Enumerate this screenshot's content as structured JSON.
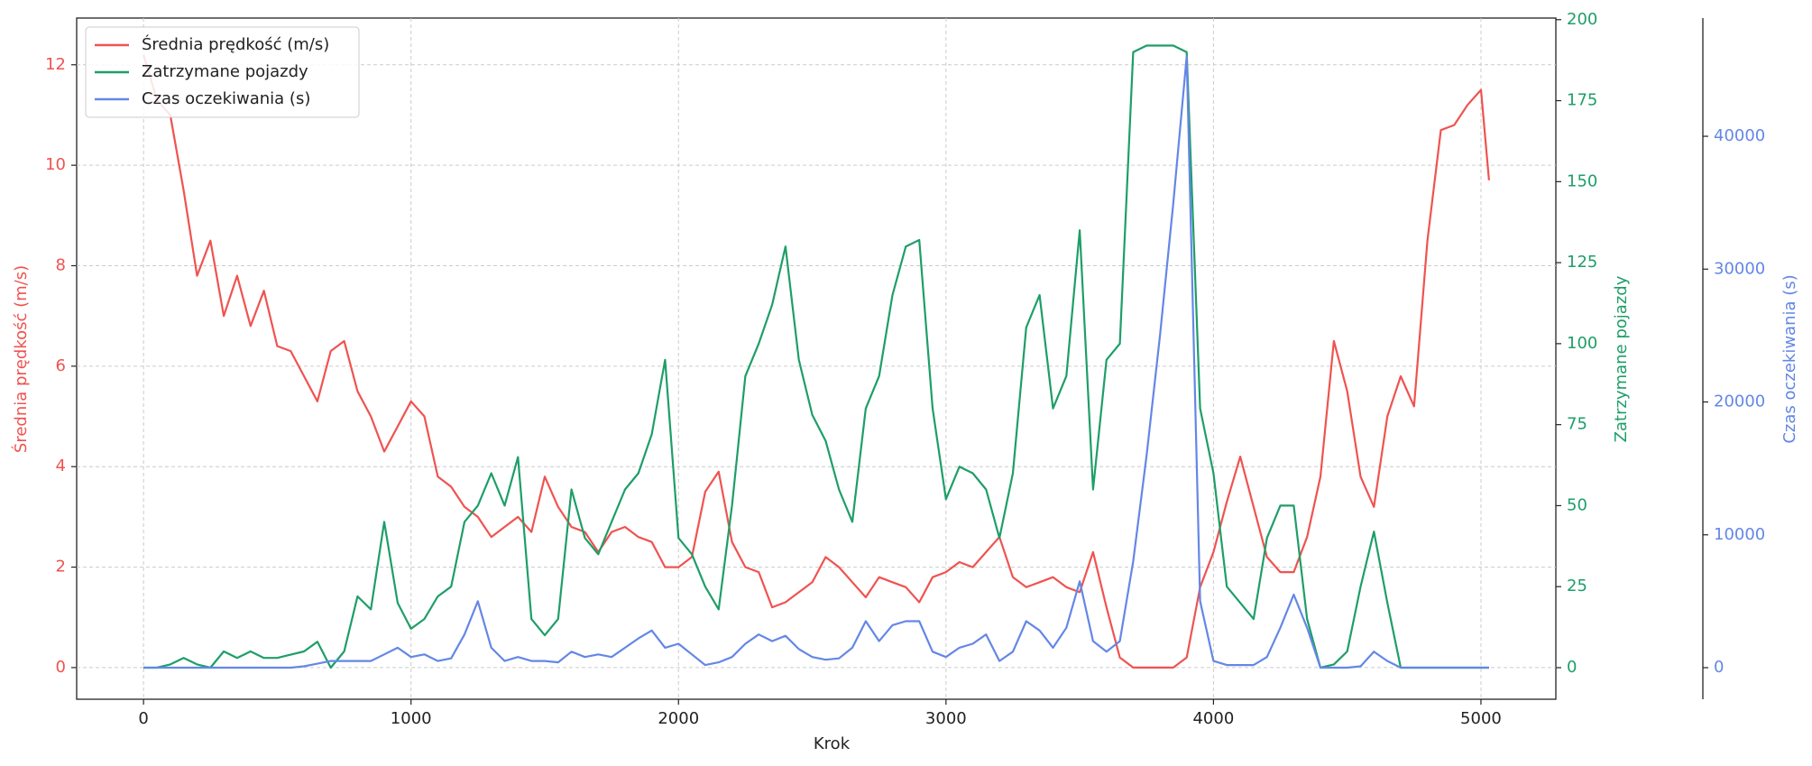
{
  "chart_data": {
    "type": "line",
    "xlabel": "Krok",
    "ylabel": "Średnia prędkość (m/s)",
    "y2label": "Zatrzymane pojazdy",
    "y3label": "Czas oczekiwania (s)",
    "grid": true,
    "legend": "upper left",
    "xlim": [
      -250,
      5280
    ],
    "xticks": [
      0,
      1000,
      2000,
      3000,
      4000,
      5000
    ],
    "ylim": [
      -0.63,
      12.93
    ],
    "yticks": [
      0,
      2,
      4,
      6,
      8,
      10,
      12
    ],
    "y2lim": [
      -9.75,
      200.5
    ],
    "y2ticks": [
      0,
      25,
      50,
      75,
      100,
      125,
      150,
      175,
      200
    ],
    "y3lim": [
      -2377,
      48900
    ],
    "y3ticks": [
      0,
      10000,
      20000,
      30000,
      40000
    ],
    "x": [
      0,
      50,
      100,
      150,
      200,
      250,
      300,
      350,
      400,
      450,
      500,
      550,
      600,
      650,
      700,
      750,
      800,
      850,
      900,
      950,
      1000,
      1050,
      1100,
      1150,
      1200,
      1250,
      1300,
      1350,
      1400,
      1450,
      1500,
      1550,
      1600,
      1650,
      1700,
      1750,
      1800,
      1850,
      1900,
      1950,
      2000,
      2050,
      2100,
      2150,
      2200,
      2250,
      2300,
      2350,
      2400,
      2450,
      2500,
      2550,
      2600,
      2650,
      2700,
      2750,
      2800,
      2850,
      2900,
      2950,
      3000,
      3050,
      3100,
      3150,
      3200,
      3250,
      3300,
      3350,
      3400,
      3450,
      3500,
      3550,
      3600,
      3650,
      3700,
      3750,
      3800,
      3850,
      3900,
      3950,
      4000,
      4050,
      4100,
      4150,
      4200,
      4250,
      4300,
      4350,
      4400,
      4450,
      4500,
      4550,
      4600,
      4650,
      4700,
      4750,
      4800,
      4850,
      4900,
      4950,
      5000,
      5030
    ],
    "series": [
      {
        "name": "Średnia prędkość (m/s)",
        "color": "#ef5350",
        "axis": "y",
        "values": [
          12.2,
          11.3,
          11.0,
          9.5,
          7.8,
          8.5,
          7.0,
          7.8,
          6.8,
          7.5,
          6.4,
          6.3,
          5.8,
          5.3,
          6.3,
          6.5,
          5.5,
          5.0,
          4.3,
          4.8,
          5.3,
          5.0,
          3.8,
          3.6,
          3.2,
          3.0,
          2.6,
          2.8,
          3.0,
          2.7,
          3.8,
          3.2,
          2.8,
          2.7,
          2.3,
          2.7,
          2.8,
          2.6,
          2.5,
          2.0,
          2.0,
          2.2,
          3.5,
          3.9,
          2.5,
          2.0,
          1.9,
          1.2,
          1.3,
          1.5,
          1.7,
          2.2,
          2.0,
          1.7,
          1.4,
          1.8,
          1.7,
          1.6,
          1.3,
          1.8,
          1.9,
          2.1,
          2.0,
          2.3,
          2.6,
          1.8,
          1.6,
          1.7,
          1.8,
          1.6,
          1.5,
          2.3,
          1.2,
          0.2,
          0,
          0,
          0,
          0,
          0.2,
          1.6,
          2.3,
          3.3,
          4.2,
          3.2,
          2.2,
          1.9,
          1.9,
          2.6,
          3.8,
          6.5,
          5.5,
          3.8,
          3.2,
          5.0,
          5.8,
          5.2,
          8.5,
          10.7,
          10.8,
          11.2,
          11.5,
          9.7
        ]
      },
      {
        "name": "Zatrzymane pojazdy",
        "color": "#1e9e68",
        "axis": "y2",
        "values": [
          0,
          0,
          1,
          3,
          1,
          0,
          5,
          3,
          5,
          3,
          3,
          4,
          5,
          8,
          0,
          5,
          22,
          18,
          45,
          20,
          12,
          15,
          22,
          25,
          45,
          50,
          60,
          50,
          65,
          15,
          10,
          15,
          55,
          40,
          35,
          45,
          55,
          60,
          72,
          95,
          40,
          35,
          25,
          18,
          50,
          90,
          100,
          112,
          130,
          95,
          78,
          70,
          55,
          45,
          80,
          90,
          115,
          130,
          132,
          80,
          52,
          62,
          60,
          55,
          40,
          60,
          105,
          115,
          80,
          90,
          135,
          55,
          95,
          100,
          190,
          192,
          192,
          192,
          190,
          80,
          60,
          25,
          20,
          15,
          40,
          50,
          50,
          15,
          0,
          1,
          5,
          25,
          42,
          20,
          0,
          0,
          0,
          0,
          0,
          0,
          0,
          0
        ]
      },
      {
        "name": "Czas oczekiwania (s)",
        "color": "#6487e6",
        "axis": "y3",
        "values": [
          0,
          0,
          0,
          0,
          0,
          0,
          0,
          0,
          0,
          0,
          0,
          0,
          100,
          300,
          500,
          500,
          500,
          500,
          1000,
          1500,
          800,
          1000,
          500,
          700,
          2500,
          5000,
          1500,
          500,
          800,
          500,
          500,
          400,
          1200,
          800,
          1000,
          800,
          1500,
          2200,
          2800,
          1500,
          1800,
          1000,
          200,
          400,
          800,
          1800,
          2500,
          2000,
          2400,
          1400,
          800,
          600,
          700,
          1500,
          3500,
          2000,
          3200,
          3500,
          3500,
          1200,
          800,
          1500,
          1800,
          2500,
          500,
          1200,
          3500,
          2800,
          1500,
          3000,
          6500,
          2000,
          1200,
          2000,
          8000,
          16000,
          25000,
          35000,
          46000,
          5000,
          500,
          200,
          200,
          200,
          800,
          3000,
          5500,
          3000,
          0,
          0,
          0,
          100,
          1200,
          500,
          0,
          0,
          0,
          0,
          0,
          0,
          0,
          0
        ]
      }
    ]
  }
}
